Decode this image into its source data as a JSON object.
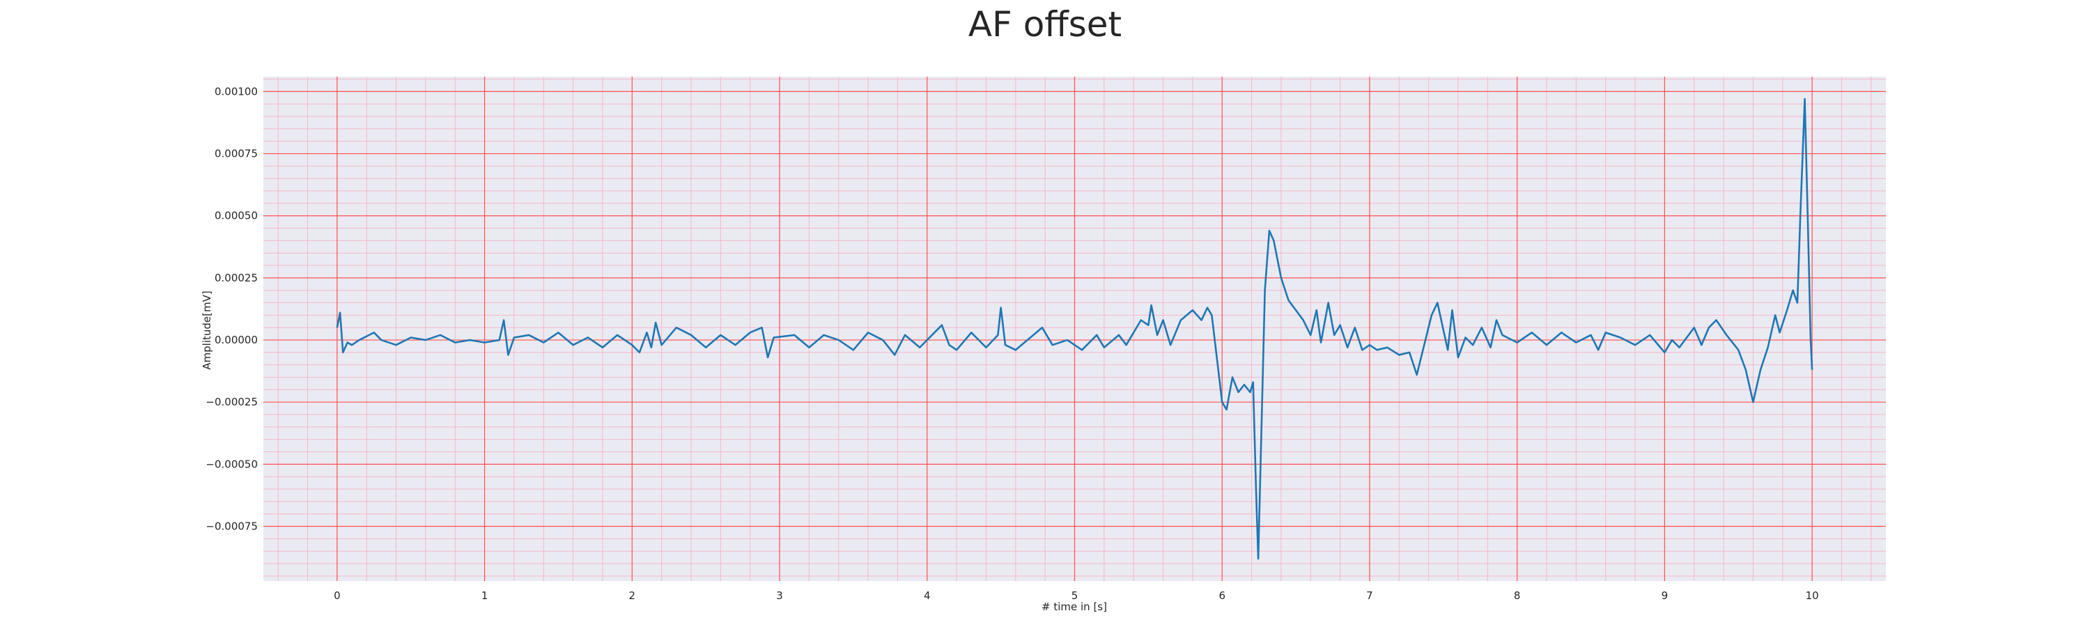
{
  "chart_data": {
    "type": "line",
    "title": "AF offset",
    "xlabel": "# time in [s]",
    "ylabel": "Amplitude[mV]",
    "color": "#1f77b4",
    "grid": true,
    "grid_color": "#ff5050",
    "minor_grid": true,
    "background": "#eaeaf2",
    "xlim": [
      -0.5,
      10.5
    ],
    "ylim": [
      -0.00097,
      0.00106
    ],
    "xticks": [
      0,
      1,
      2,
      3,
      4,
      5,
      6,
      7,
      8,
      9,
      10
    ],
    "yticks": [
      {
        "value": -0.00075,
        "label": "−0.00075"
      },
      {
        "value": -0.0005,
        "label": "−0.00050"
      },
      {
        "value": -0.00025,
        "label": "−0.00025"
      },
      {
        "value": 0,
        "label": "0.00000"
      },
      {
        "value": 0.00025,
        "label": "0.00025"
      },
      {
        "value": 0.0005,
        "label": "0.00050"
      },
      {
        "value": 0.00075,
        "label": "0.00075"
      },
      {
        "value": 0.001,
        "label": "0.00100"
      }
    ],
    "x": [
      0,
      0.02,
      0.04,
      0.07,
      0.1,
      0.15,
      0.25,
      0.3,
      0.4,
      0.5,
      0.6,
      0.7,
      0.8,
      0.9,
      1.0,
      1.1,
      1.13,
      1.16,
      1.2,
      1.3,
      1.4,
      1.5,
      1.6,
      1.7,
      1.8,
      1.9,
      2.0,
      2.05,
      2.1,
      2.13,
      2.16,
      2.2,
      2.3,
      2.4,
      2.5,
      2.6,
      2.7,
      2.8,
      2.88,
      2.92,
      2.96,
      3.1,
      3.2,
      3.3,
      3.4,
      3.5,
      3.6,
      3.7,
      3.78,
      3.85,
      3.95,
      4.05,
      4.1,
      4.15,
      4.2,
      4.3,
      4.4,
      4.48,
      4.5,
      4.53,
      4.6,
      4.7,
      4.78,
      4.85,
      4.95,
      5.05,
      5.15,
      5.2,
      5.3,
      5.35,
      5.45,
      5.5,
      5.52,
      5.56,
      5.6,
      5.65,
      5.72,
      5.8,
      5.86,
      5.9,
      5.93,
      5.96,
      6.0,
      6.03,
      6.07,
      6.11,
      6.15,
      6.19,
      6.21,
      6.23,
      6.245,
      6.265,
      6.29,
      6.32,
      6.35,
      6.4,
      6.45,
      6.5,
      6.55,
      6.6,
      6.64,
      6.67,
      6.72,
      6.76,
      6.8,
      6.85,
      6.9,
      6.95,
      7.0,
      7.05,
      7.12,
      7.2,
      7.27,
      7.32,
      7.37,
      7.42,
      7.46,
      7.5,
      7.53,
      7.56,
      7.6,
      7.65,
      7.7,
      7.76,
      7.82,
      7.86,
      7.9,
      8.0,
      8.1,
      8.2,
      8.3,
      8.4,
      8.5,
      8.55,
      8.6,
      8.7,
      8.8,
      8.9,
      9.0,
      9.05,
      9.1,
      9.2,
      9.25,
      9.3,
      9.35,
      9.42,
      9.5,
      9.55,
      9.6,
      9.65,
      9.7,
      9.75,
      9.78,
      9.83,
      9.87,
      9.9,
      9.92,
      9.95,
      9.97,
      9.99,
      10.0
    ],
    "values": [
      5e-05,
      0.00011,
      -5e-05,
      -1e-05,
      -2e-05,
      0,
      3e-05,
      0,
      -2e-05,
      1e-05,
      0,
      2e-05,
      -1e-05,
      0,
      -1e-05,
      0,
      8e-05,
      -6e-05,
      1e-05,
      2e-05,
      -1e-05,
      3e-05,
      -2e-05,
      1e-05,
      -3e-05,
      2e-05,
      -2e-05,
      -5e-05,
      3e-05,
      -3e-05,
      7e-05,
      -2e-05,
      5e-05,
      2e-05,
      -3e-05,
      2e-05,
      -2e-05,
      3e-05,
      5e-05,
      -7e-05,
      1e-05,
      2e-05,
      -3e-05,
      2e-05,
      0,
      -4e-05,
      3e-05,
      0,
      -6e-05,
      2e-05,
      -3e-05,
      3e-05,
      6e-05,
      -2e-05,
      -4e-05,
      3e-05,
      -3e-05,
      2e-05,
      0.00013,
      -2e-05,
      -4e-05,
      1e-05,
      5e-05,
      -2e-05,
      0,
      -4e-05,
      2e-05,
      -3e-05,
      2e-05,
      -2e-05,
      8e-05,
      6e-05,
      0.00014,
      2e-05,
      8e-05,
      -2e-05,
      8e-05,
      0.00012,
      8e-05,
      0.00013,
      0.0001,
      -5e-05,
      -0.00025,
      -0.00028,
      -0.00015,
      -0.00021,
      -0.00018,
      -0.00021,
      -0.00017,
      -0.0006,
      -0.00088,
      -0.0004,
      0.0002,
      0.00044,
      0.0004,
      0.00025,
      0.00016,
      0.00012,
      8e-05,
      2e-05,
      0.00012,
      -1e-05,
      0.00015,
      2e-05,
      6e-05,
      -3e-05,
      5e-05,
      -4e-05,
      -2e-05,
      -4e-05,
      -3e-05,
      -6e-05,
      -5e-05,
      -0.00014,
      -2e-05,
      0.0001,
      0.00015,
      4e-05,
      -4e-05,
      0.00012,
      -7e-05,
      1e-05,
      -2e-05,
      5e-05,
      -3e-05,
      8e-05,
      2e-05,
      -1e-05,
      3e-05,
      -2e-05,
      3e-05,
      -1e-05,
      2e-05,
      -4e-05,
      3e-05,
      1e-05,
      -2e-05,
      2e-05,
      -5e-05,
      0,
      -3e-05,
      5e-05,
      -2e-05,
      5e-05,
      8e-05,
      2e-05,
      -4e-05,
      -0.00012,
      -0.00025,
      -0.00012,
      -3e-05,
      0.0001,
      3e-05,
      0.00012,
      0.0002,
      0.00015,
      0.0005,
      0.00097,
      0.0005,
      0,
      -0.00012
    ]
  }
}
